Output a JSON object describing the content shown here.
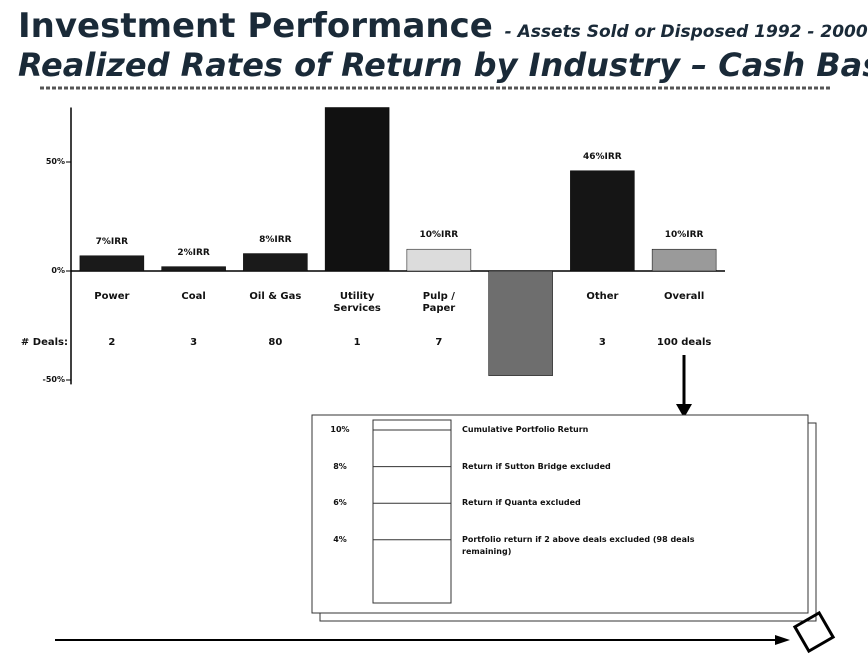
{
  "chart_data": {
    "type": "bar",
    "title": "Investment Performance",
    "title_suffix": "- Assets Sold or Disposed 1992 - 2000",
    "subtitle": "Realized Rates of Return by Industry – Cash Basis",
    "categories": [
      "Power",
      "Coal",
      "Oil & Gas",
      "Utility Services",
      "Pulp / Paper",
      null,
      "Other",
      "Overall"
    ],
    "values": [
      7,
      2,
      8,
      75,
      10,
      -48,
      46,
      10
    ],
    "value_labels": [
      "7%IRR",
      "2%IRR",
      "8%IRR",
      null,
      "10%IRR",
      null,
      "46%IRR",
      "10%IRR"
    ],
    "colors": [
      "#1a1a1a",
      "#1a1a1a",
      "#1a1a1a",
      "#111111",
      "#dcdcdc",
      "#6e6e6e",
      "#151515",
      "#9a9a9a"
    ],
    "deals_label": "# Deals:",
    "deals": [
      "2",
      "3",
      "80",
      "1",
      "7",
      null,
      "3",
      "100 deals"
    ],
    "ylim": [
      -52,
      75
    ],
    "yticks": [
      {
        "value": 50,
        "label": "50%"
      },
      {
        "value": 0,
        "label": "0%"
      },
      {
        "value": -50,
        "label": "-50%"
      }
    ],
    "inset": [
      {
        "value": 10,
        "value_label": "10%",
        "label": "Cumulative Portfolio Return"
      },
      {
        "value": 8,
        "value_label": "8%",
        "label": "Return if Sutton Bridge excluded"
      },
      {
        "value": 6,
        "value_label": "6%",
        "label": "Return if Quanta excluded"
      },
      {
        "value": 4,
        "value_label": "4%",
        "label": "Portfolio return if 2 above deals excluded (98 deals remaining)"
      }
    ]
  }
}
